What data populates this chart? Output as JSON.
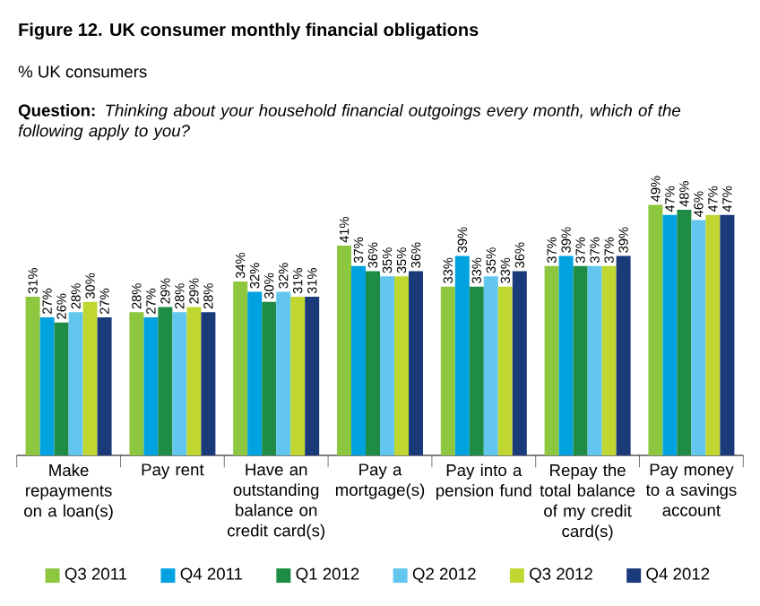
{
  "chart_data": {
    "type": "bar",
    "title": "Figure 12. UK consumer monthly financial obligations",
    "subtitle": "% UK consumers",
    "annotations": [
      "**Question:** *Thinking about your household financial outgoings every month, which of the following apply to you?*"
    ],
    "categories": [
      "Make repayments on a loan(s)",
      "Pay rent",
      "Have an outstanding balance on credit card(s)",
      "Pay a mortgage(s)",
      "Pay into a pension fund",
      "Repay the total balance of my credit card(s)",
      "Pay money to a savings account"
    ],
    "series": [
      {
        "name": "Q3 2011",
        "color": "#8dc63f",
        "values": [
          31,
          28,
          34,
          41,
          33,
          37,
          49
        ],
        "value_labels": [
          "31%",
          "28%",
          "34%",
          "41%",
          "33%",
          "37%",
          "49%"
        ]
      },
      {
        "name": "Q4 2011",
        "color": "#00a3e0",
        "values": [
          27,
          27,
          32,
          37,
          39,
          39,
          47
        ],
        "value_labels": [
          "27%",
          "27%",
          "32%",
          "37%",
          "39%",
          "39%",
          "47%"
        ]
      },
      {
        "name": "Q1 2012",
        "color": "#1e8c45",
        "values": [
          26,
          29,
          30,
          36,
          33,
          37,
          48
        ],
        "value_labels": [
          "26%",
          "29%",
          "30%",
          "36%",
          "33%",
          "37%",
          "48%"
        ]
      },
      {
        "name": "Q2 2012",
        "color": "#62c6ee",
        "values": [
          28,
          28,
          32,
          35,
          35,
          37,
          46
        ],
        "value_labels": [
          "28%",
          "28%",
          "32%",
          "35%",
          "35%",
          "37%",
          "46%"
        ]
      },
      {
        "name": "Q3 2012",
        "color": "#bfd730",
        "values": [
          30,
          29,
          31,
          35,
          33,
          37,
          47
        ],
        "value_labels": [
          "30%",
          "29%",
          "31%",
          "35%",
          "33%",
          "37%",
          "47%"
        ]
      },
      {
        "name": "Q4 2012",
        "color": "#1b3a7a",
        "values": [
          27,
          28,
          31,
          36,
          36,
          39,
          47
        ],
        "value_labels": [
          "27%",
          "28%",
          "31%",
          "36%",
          "36%",
          "39%",
          "47%"
        ]
      }
    ],
    "legend": "bottom"
  }
}
